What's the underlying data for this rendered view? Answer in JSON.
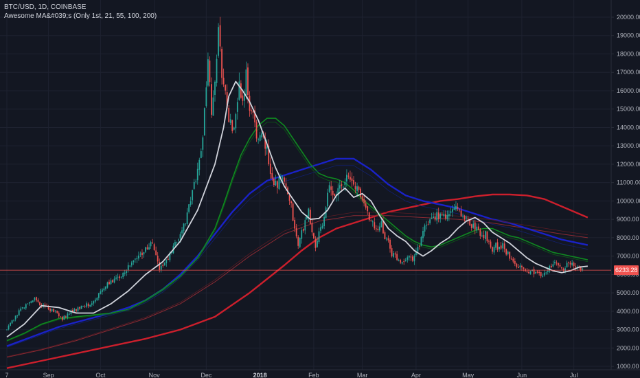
{
  "legend": {
    "symbol_line": "BTC/USD, 1D, COINBASE",
    "indicator_line": "Awesome MA&#039;s (Only 1st, 21, 55, 100, 200)"
  },
  "colors": {
    "background": "#131722",
    "grid": "#1e2230",
    "up": "#26a69a",
    "down": "#ef5350",
    "ma1": "#d1d4dc",
    "ma21": "#0f8a20",
    "ma55": "#1a22c8",
    "ma200": "#cc1f2c",
    "last_price": "#ef5350"
  },
  "current_price_label": "6233.28",
  "chart_data": {
    "type": "candlestick",
    "title": "BTC/USD, 1D, COINBASE",
    "y_ticks": [
      "1000.00",
      "2000.00",
      "3000.00",
      "4000.00",
      "5000.00",
      "6000.00",
      "7000.00",
      "8000.00",
      "9000.00",
      "10000.00",
      "11000.00",
      "12000.00",
      "13000.00",
      "14000.00",
      "15000.00",
      "16000.00",
      "17000.00",
      "18000.00",
      "19000.00",
      "20000.00"
    ],
    "ylim": [
      500,
      20500
    ],
    "x_ticks": [
      {
        "label": "7",
        "day": 0,
        "bold": false
      },
      {
        "label": "Sep",
        "day": 24,
        "bold": false
      },
      {
        "label": "Oct",
        "day": 54,
        "bold": false
      },
      {
        "label": "Nov",
        "day": 85,
        "bold": false
      },
      {
        "label": "Dec",
        "day": 115,
        "bold": false
      },
      {
        "label": "2018",
        "day": 146,
        "bold": true
      },
      {
        "label": "Feb",
        "day": 177,
        "bold": false
      },
      {
        "label": "Mar",
        "day": 205,
        "bold": false
      },
      {
        "label": "Apr",
        "day": 236,
        "bold": false
      },
      {
        "label": "May",
        "day": 266,
        "bold": false
      },
      {
        "label": "Jun",
        "day": 297,
        "bold": false
      },
      {
        "label": "Jul",
        "day": 327,
        "bold": false
      }
    ],
    "last_price": 6233.28,
    "close_path_days": [
      0,
      4,
      8,
      12,
      16,
      20,
      24,
      28,
      32,
      36,
      40,
      44,
      48,
      52,
      56,
      60,
      64,
      68,
      72,
      76,
      80,
      84,
      88,
      92,
      96,
      100,
      104,
      108,
      112,
      114,
      116,
      118,
      120,
      122,
      124,
      126,
      128,
      130,
      132,
      134,
      136,
      138,
      140,
      142,
      144,
      146,
      148,
      150,
      152,
      154,
      156,
      158,
      160,
      162,
      164,
      166,
      168,
      170,
      172,
      174,
      176,
      178,
      180,
      182,
      184,
      186,
      188,
      190,
      192,
      194,
      196,
      198,
      200,
      202,
      204,
      206,
      208,
      210,
      212,
      214,
      216,
      218,
      220,
      222,
      224,
      226,
      228,
      230,
      232,
      234,
      236,
      238,
      240,
      242,
      244,
      246,
      248,
      250,
      252,
      254,
      256,
      258,
      260,
      262,
      264,
      266,
      268,
      270,
      272,
      274,
      276,
      278,
      280,
      282,
      284,
      286,
      288,
      290,
      292,
      294,
      296,
      298,
      300,
      302,
      304,
      306,
      308,
      310,
      312,
      314,
      316,
      318,
      320,
      322,
      324,
      326,
      328,
      330,
      332,
      334,
      335
    ],
    "close_path_values": [
      3000,
      3600,
      4100,
      4400,
      4700,
      4300,
      4150,
      4000,
      3600,
      3900,
      4100,
      4300,
      4400,
      4800,
      5300,
      5600,
      5800,
      6200,
      6600,
      7000,
      7400,
      7700,
      6300,
      6700,
      7400,
      8200,
      9200,
      10900,
      12500,
      15000,
      17500,
      14800,
      16500,
      19200,
      17000,
      15800,
      14600,
      13800,
      14500,
      16300,
      15200,
      16800,
      15000,
      14800,
      13400,
      13800,
      13300,
      12800,
      11500,
      11100,
      10900,
      11300,
      11000,
      10200,
      9700,
      8400,
      7600,
      8300,
      8800,
      9400,
      8300,
      7500,
      8200,
      8700,
      9700,
      10800,
      10200,
      10400,
      10900,
      11000,
      11300,
      11100,
      10900,
      10700,
      10200,
      9900,
      9400,
      8900,
      8600,
      8300,
      8700,
      8000,
      7800,
      7100,
      7000,
      6800,
      6700,
      6900,
      7000,
      6900,
      7200,
      7600,
      8400,
      8600,
      8800,
      9000,
      9300,
      9100,
      9200,
      9100,
      9400,
      9700,
      9600,
      9300,
      9200,
      8800,
      8700,
      8600,
      8400,
      8100,
      8200,
      7700,
      7400,
      7600,
      7400,
      7600,
      7200,
      7000,
      6800,
      6500,
      6400,
      6300,
      6200,
      6200,
      6100,
      6000,
      6000,
      6100,
      6300,
      6400,
      6600,
      6500,
      6300,
      6400,
      6700,
      6500,
      6400,
      6300,
      6233
    ],
    "series": [
      {
        "name": "MA 1st",
        "color": "#d1d4dc",
        "width": 1.8,
        "x": [
          0,
          10,
          20,
          30,
          40,
          50,
          60,
          70,
          80,
          90,
          100,
          110,
          120,
          125,
          128,
          132,
          136,
          140,
          145,
          150,
          155,
          160,
          165,
          170,
          175,
          180,
          185,
          190,
          195,
          200,
          205,
          210,
          215,
          220,
          225,
          230,
          235,
          240,
          245,
          250,
          255,
          260,
          265,
          270,
          275,
          280,
          285,
          290,
          295,
          300,
          305,
          310,
          315,
          320,
          325,
          330,
          335
        ],
        "y": [
          2600,
          3300,
          4300,
          4200,
          3900,
          3900,
          4400,
          5100,
          6000,
          6700,
          7800,
          9500,
          12000,
          14000,
          15700,
          16500,
          16000,
          15400,
          14400,
          13100,
          11800,
          10800,
          10100,
          9400,
          9000,
          9050,
          9500,
          10300,
          10700,
          10200,
          10400,
          10000,
          9200,
          8500,
          8100,
          7800,
          7300,
          7000,
          7300,
          7700,
          8000,
          8500,
          8900,
          9100,
          8800,
          8300,
          8000,
          7700,
          7300,
          6900,
          6600,
          6400,
          6200,
          6100,
          6200,
          6400,
          6450
        ]
      },
      {
        "name": "MA 21",
        "color": "#0f8a20",
        "width": 1.6,
        "x": [
          0,
          10,
          20,
          30,
          40,
          50,
          60,
          70,
          80,
          90,
          100,
          110,
          120,
          125,
          130,
          135,
          140,
          145,
          150,
          155,
          160,
          165,
          170,
          175,
          180,
          185,
          190,
          195,
          200,
          205,
          210,
          215,
          220,
          225,
          230,
          235,
          240,
          245,
          250,
          255,
          260,
          265,
          270,
          275,
          280,
          285,
          290,
          295,
          300,
          305,
          310,
          315,
          320,
          325,
          330,
          335
        ],
        "y": [
          2400,
          2800,
          3300,
          3600,
          3700,
          3800,
          3900,
          4100,
          4600,
          5200,
          5900,
          6900,
          8500,
          9800,
          11200,
          12500,
          13400,
          14100,
          14500,
          14500,
          14100,
          13400,
          12700,
          12000,
          11500,
          11300,
          11200,
          11000,
          10600,
          10100,
          9700,
          9300,
          8900,
          8500,
          8100,
          7800,
          7600,
          7500,
          7600,
          7800,
          8000,
          8200,
          8400,
          8500,
          8500,
          8300,
          8100,
          8000,
          7800,
          7600,
          7400,
          7200,
          7100,
          7000,
          6900,
          6800
        ]
      },
      {
        "name": "MA 55",
        "color": "#1a22c8",
        "width": 2.4,
        "x": [
          0,
          10,
          20,
          30,
          40,
          50,
          60,
          70,
          80,
          90,
          100,
          110,
          120,
          130,
          140,
          150,
          160,
          170,
          180,
          190,
          200,
          210,
          220,
          230,
          240,
          250,
          260,
          270,
          280,
          290,
          300,
          310,
          320,
          330,
          335
        ],
        "y": [
          2100,
          2450,
          2800,
          3150,
          3400,
          3650,
          3900,
          4200,
          4600,
          5200,
          6000,
          7000,
          8200,
          9400,
          10400,
          11100,
          11400,
          11700,
          12000,
          12300,
          12300,
          11700,
          10900,
          10300,
          10000,
          9800,
          9600,
          9300,
          9000,
          8800,
          8500,
          8200,
          7900,
          7700,
          7600
        ]
      },
      {
        "name": "MA 100",
        "color": "#8b2a33",
        "width": 1.0,
        "x": [
          0,
          20,
          40,
          60,
          80,
          100,
          120,
          140,
          160,
          180,
          200,
          220,
          240,
          260,
          280,
          300,
          320,
          335
        ],
        "y": [
          1500,
          1900,
          2400,
          3000,
          3600,
          4400,
          5600,
          7000,
          8200,
          8900,
          9200,
          9200,
          9100,
          9000,
          8800,
          8500,
          8200,
          8000
        ]
      },
      {
        "name": "MA 200",
        "color": "#cc1f2c",
        "width": 2.4,
        "x": [
          0,
          20,
          40,
          60,
          80,
          100,
          120,
          140,
          160,
          170,
          180,
          190,
          200,
          210,
          220,
          230,
          240,
          250,
          260,
          270,
          280,
          290,
          300,
          310,
          320,
          330,
          335
        ],
        "y": [
          900,
          1300,
          1700,
          2100,
          2500,
          3000,
          3700,
          5000,
          6500,
          7300,
          8000,
          8500,
          8800,
          9100,
          9400,
          9600,
          9800,
          10000,
          10100,
          10250,
          10350,
          10350,
          10300,
          10100,
          9700,
          9300,
          9100
        ]
      }
    ]
  }
}
